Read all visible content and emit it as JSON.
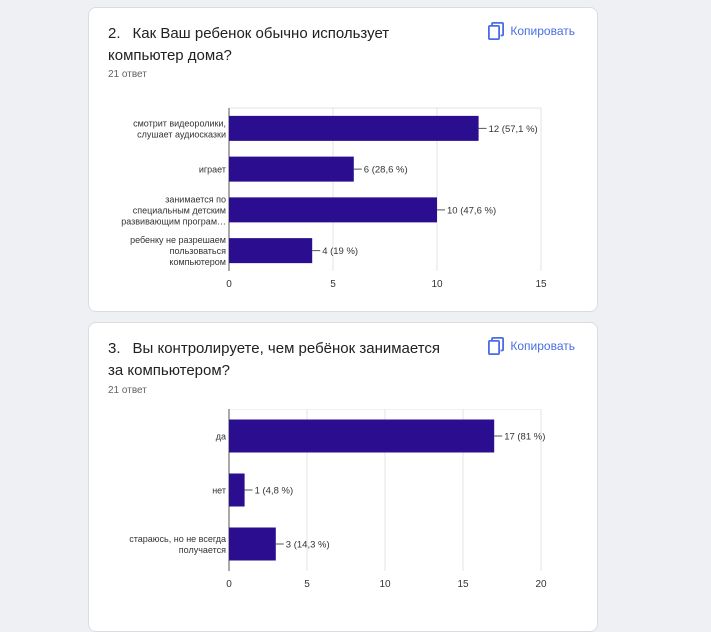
{
  "accent_color": "#4a6de5",
  "bar_color": "#2a0e8f",
  "copy_icon": "copy-icon",
  "questions": [
    {
      "number": "2.",
      "title": "Как Ваш ребенок обычно использует компьютер дома?",
      "copy_label": "Копировать",
      "count": "21 ответ"
    },
    {
      "number": "3.",
      "title": "Вы контролируете, чем ребёнок занимается за компьютером?",
      "copy_label": "Копировать",
      "count": "21 ответ"
    }
  ],
  "chart_data": [
    {
      "type": "bar",
      "orientation": "horizontal",
      "categories": [
        [
          "смотрит видеоролики,",
          "слушает аудиосказки"
        ],
        [
          "играет"
        ],
        [
          "занимается по",
          "специальным детским",
          "развивающим програм…"
        ],
        [
          "ребенку не разрешаем",
          "пользоваться",
          "компьютером"
        ]
      ],
      "values": [
        12,
        6,
        10,
        4
      ],
      "data_labels": [
        "12 (57,1 %)",
        "6 (28,6 %)",
        "10 (47,6 %)",
        "4 (19 %)"
      ],
      "xlim": [
        0,
        15
      ],
      "xticks": [
        "0",
        "5",
        "10",
        "15"
      ],
      "grid": true
    },
    {
      "type": "bar",
      "orientation": "horizontal",
      "categories": [
        [
          "да"
        ],
        [
          "нет"
        ],
        [
          "стараюсь, но не всегда",
          "получается"
        ]
      ],
      "values": [
        17,
        1,
        3
      ],
      "data_labels": [
        "17 (81 %)",
        "1 (4,8 %)",
        "3 (14,3 %)"
      ],
      "xlim": [
        0,
        20
      ],
      "xticks": [
        "0",
        "5",
        "10",
        "15",
        "20"
      ],
      "grid": true
    }
  ]
}
